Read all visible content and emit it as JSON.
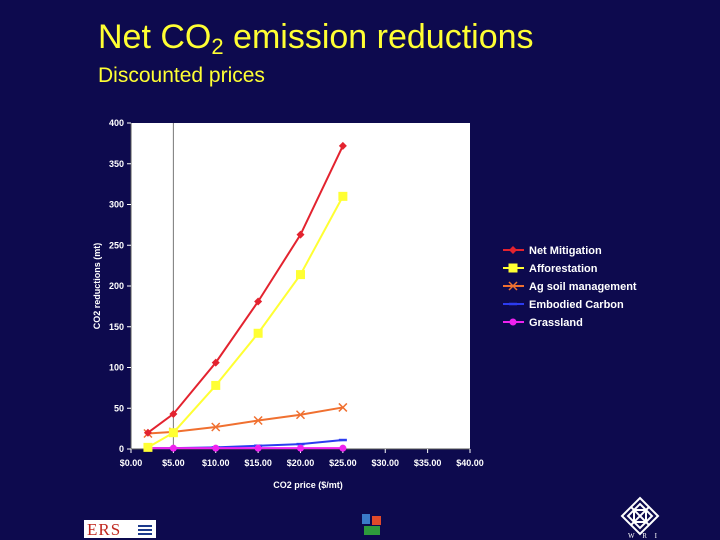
{
  "header": {
    "title_main": "Net CO",
    "title_sub": "2",
    "title_rest": " emission reductions",
    "subtitle": "Discounted prices"
  },
  "logos": {
    "ers": "ERS",
    "wri": "W R I"
  },
  "chart_data": {
    "type": "line",
    "xlabel": "CO2 price ($/mt)",
    "ylabel": "CO2 reductions  (mt)",
    "xlim": [
      0,
      40
    ],
    "ylim": [
      0,
      400
    ],
    "x_ticks": [
      0,
      5,
      10,
      15,
      20,
      25,
      30,
      35,
      40
    ],
    "x_tick_labels": [
      "$0.00",
      "$5.00",
      "$10.00",
      "$15.00",
      "$20.00",
      "$25.00",
      "$30.00",
      "$35.00",
      "$40.00"
    ],
    "y_ticks": [
      0,
      50,
      100,
      150,
      200,
      250,
      300,
      350,
      400
    ],
    "y_tick_labels": [
      "0",
      "50",
      "100",
      "150",
      "200",
      "250",
      "300",
      "350",
      "400"
    ],
    "grid": "vertical line at x=5",
    "legend_position": "right",
    "x": [
      2,
      5,
      10,
      15,
      20,
      25,
      30
    ],
    "series": [
      {
        "name": "Net Mitigation",
        "color": "#e3232f",
        "marker": "diamond",
        "values": [
          20,
          43,
          106,
          181,
          263,
          372,
          null
        ]
      },
      {
        "name": "Afforestation",
        "color": "#ffff33",
        "marker": "square",
        "values": [
          2,
          20,
          78,
          142,
          214,
          310,
          null
        ]
      },
      {
        "name": "Ag soil management",
        "color": "#f07030",
        "marker": "x",
        "values": [
          19,
          21,
          27,
          35,
          42,
          51,
          null
        ]
      },
      {
        "name": "Embodied Carbon",
        "color": "#2c3cf0",
        "marker": "dash",
        "values": [
          1,
          1,
          2,
          4,
          6,
          11,
          null
        ]
      },
      {
        "name": "Grassland",
        "color": "#ee22ee",
        "marker": "circle",
        "values": [
          1,
          1,
          1,
          1,
          1,
          1,
          null
        ]
      }
    ]
  }
}
